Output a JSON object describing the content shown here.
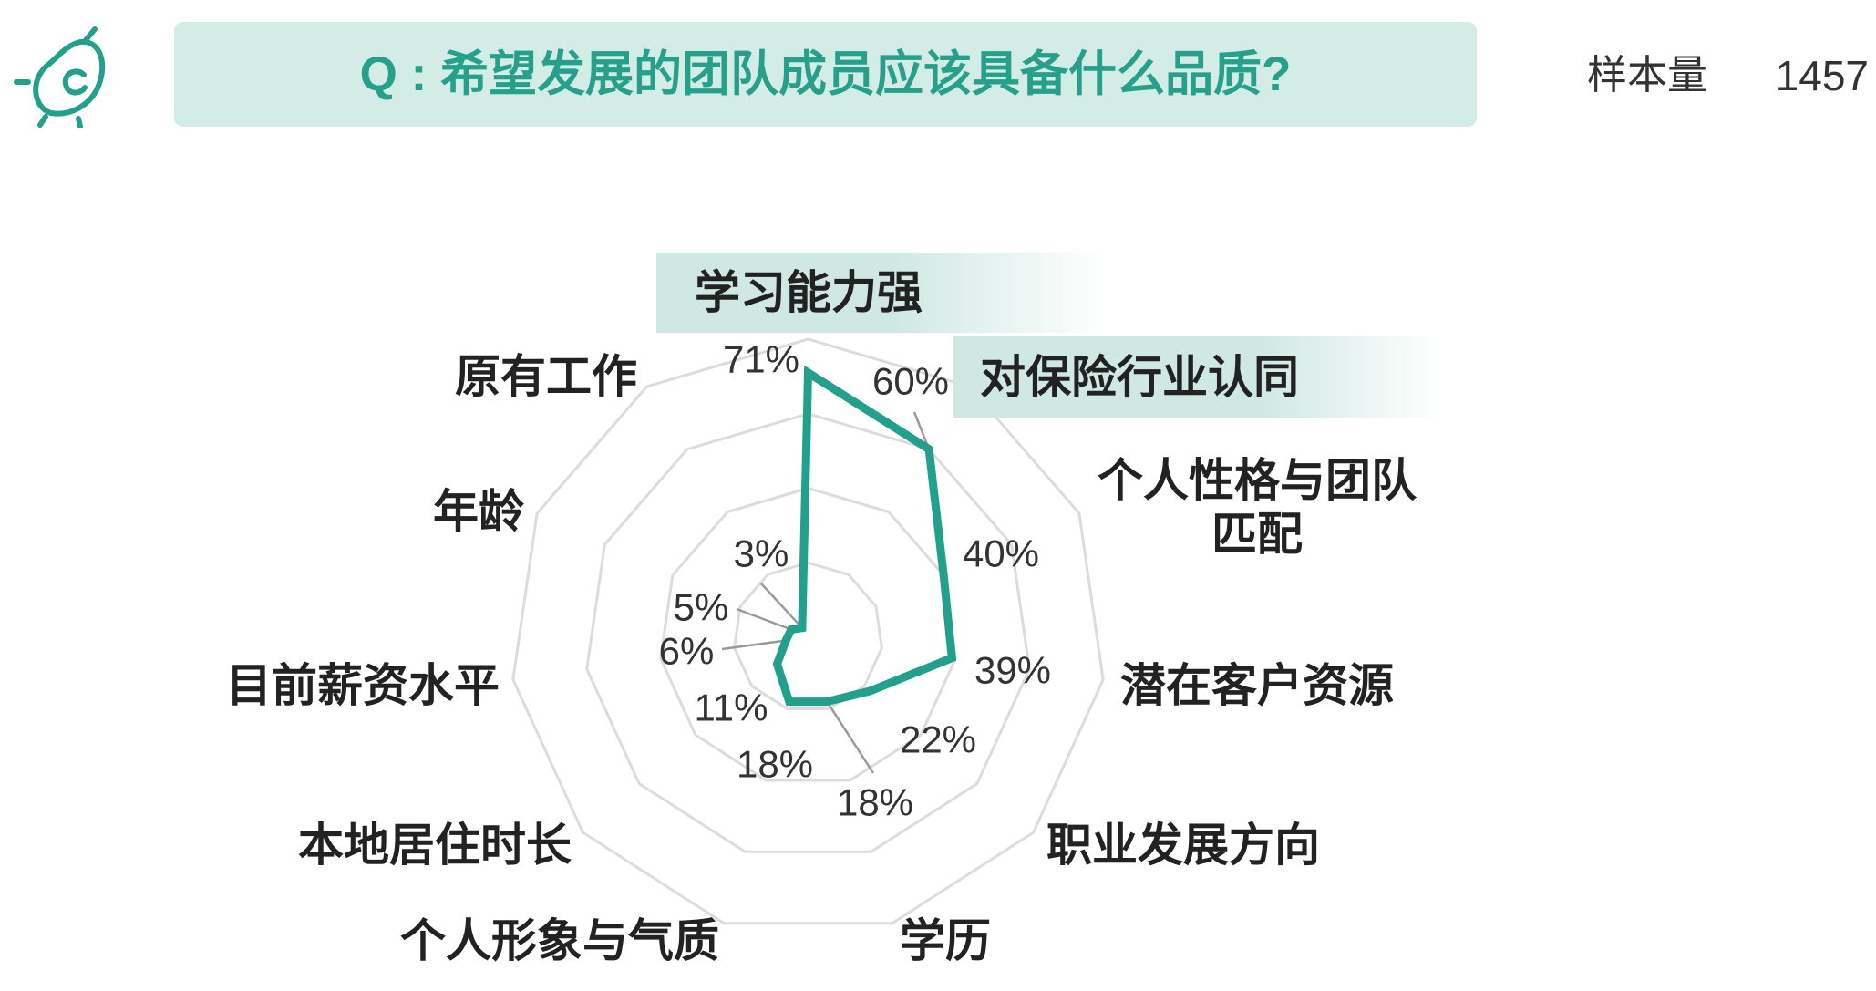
{
  "header": {
    "title": "Q : 希望发展的团队成员应该具备什么品质?",
    "sample_label": "样本量",
    "sample_size": "1457"
  },
  "logo": {
    "icon": "avocado-logo-icon"
  },
  "colors": {
    "accent": "#22a08b",
    "title_background": "#d4ece6",
    "highlight_background": "#cfe8e2",
    "grid": "#dcdcdc",
    "leader": "#9a9a9a",
    "text": "#222222"
  },
  "chart_data": {
    "type": "radar",
    "categories": [
      "学习能力强",
      "对保险行业认同",
      "个人性格与团队匹配",
      "潜在客户资源",
      "职业发展方向",
      "学历",
      "个人形象与气质",
      "本地居住时长",
      "目前薪资水平",
      "年龄",
      "原有工作"
    ],
    "values": [
      71,
      60,
      40,
      39,
      22,
      18,
      18,
      11,
      6,
      5,
      3
    ],
    "value_labels": [
      "71%",
      "60%",
      "40%",
      "39%",
      "22%",
      "18%",
      "18%",
      "11%",
      "6%",
      "5%",
      "3%"
    ],
    "rlim": [
      0,
      80
    ],
    "grid_levels": [
      20,
      40,
      60,
      80
    ],
    "grid": true,
    "highlighted_categories": [
      0,
      1
    ]
  }
}
